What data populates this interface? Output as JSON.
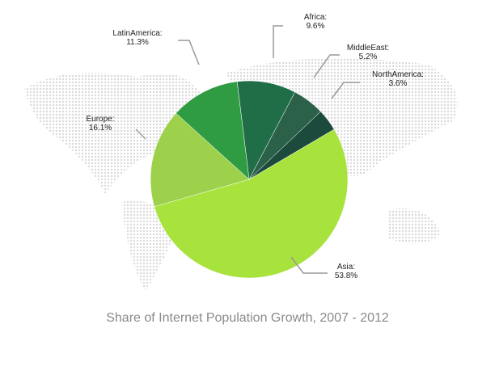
{
  "chart_data": {
    "type": "pie",
    "title": "Share of Internet Population Growth, 2007 - 2012",
    "categories": [
      "Africa:",
      "MiddleEast:",
      "NorthAmerica:",
      "Asia:",
      "Europe:",
      "LatinAmerica:"
    ],
    "values": [
      9.6,
      5.2,
      3.6,
      53.8,
      16.1,
      11.3
    ],
    "value_labels": [
      "9.6%",
      "5.2%",
      "3.6%",
      "53.8%",
      "16.1%",
      "11.3%"
    ],
    "colors": [
      "#1f6e47",
      "#2b6049",
      "#1c4a3c",
      "#a8e23c",
      "#9dd04b",
      "#2f9b42"
    ]
  }
}
